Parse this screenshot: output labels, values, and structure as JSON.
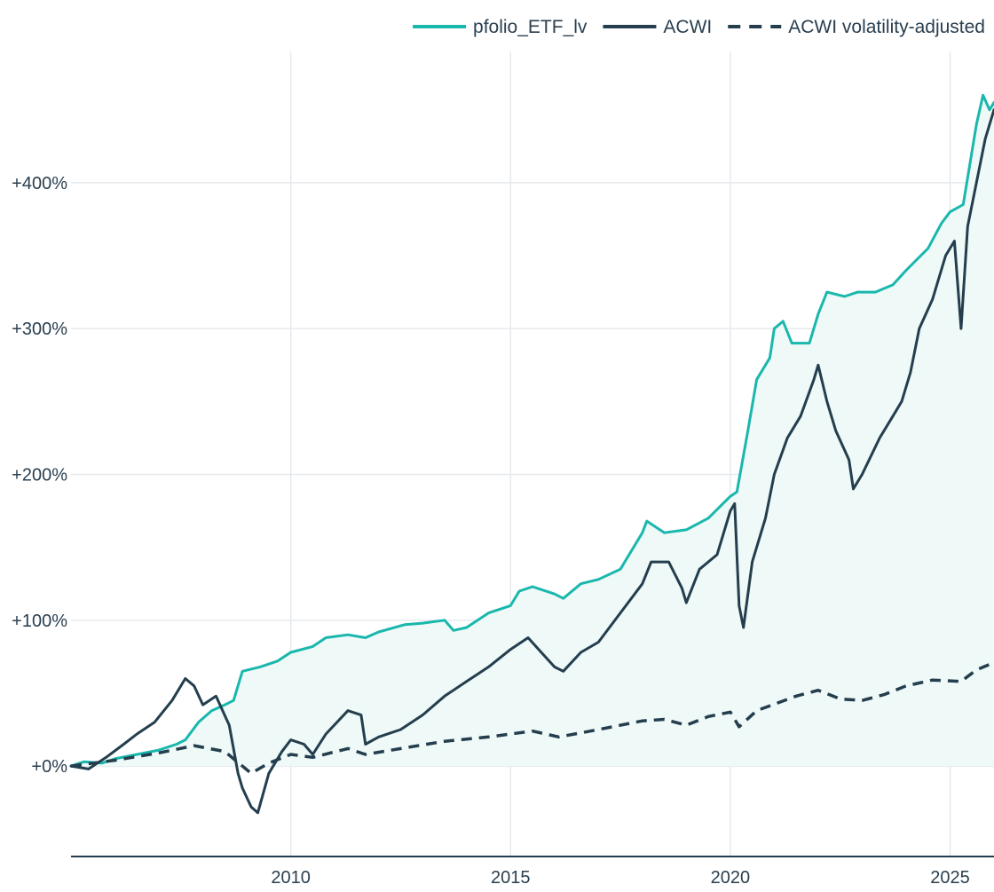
{
  "chart_data": {
    "type": "line",
    "title": "",
    "xlabel": "",
    "ylabel": "",
    "x_range": [
      2005.0,
      2026.0
    ],
    "y_range": [
      -62,
      490
    ],
    "x_ticks": [
      2010,
      2015,
      2020,
      2025
    ],
    "x_tick_labels": [
      "2010",
      "2015",
      "2020",
      "2025"
    ],
    "y_ticks": [
      0,
      100,
      200,
      300,
      400
    ],
    "y_tick_labels": [
      "+0%",
      "+100%",
      "+200%",
      "+300%",
      "+400%"
    ],
    "grid": true,
    "legend_position": "top-right",
    "legend": [
      {
        "label": "pfolio_ETF_lv",
        "style": "solid",
        "color": "#1ab7ad"
      },
      {
        "label": "ACWI",
        "style": "solid",
        "color": "#243e4d"
      },
      {
        "label": "ACWI volatility-adjusted",
        "style": "dashed",
        "color": "#243e4d"
      }
    ],
    "fill_color": "#eef9f8",
    "series": [
      {
        "name": "pfolio_ETF_lv",
        "color": "#1ab7ad",
        "dash": "solid",
        "fill_to_zero": true,
        "points": [
          [
            2005.0,
            0
          ],
          [
            2005.3,
            3
          ],
          [
            2005.7,
            2
          ],
          [
            2006.0,
            5
          ],
          [
            2006.5,
            8
          ],
          [
            2007.0,
            11
          ],
          [
            2007.4,
            15
          ],
          [
            2007.6,
            18
          ],
          [
            2007.9,
            30
          ],
          [
            2008.2,
            38
          ],
          [
            2008.5,
            42
          ],
          [
            2008.7,
            45
          ],
          [
            2008.9,
            65
          ],
          [
            2009.3,
            68
          ],
          [
            2009.7,
            72
          ],
          [
            2010.0,
            78
          ],
          [
            2010.5,
            82
          ],
          [
            2010.8,
            88
          ],
          [
            2011.3,
            90
          ],
          [
            2011.7,
            88
          ],
          [
            2012.0,
            92
          ],
          [
            2012.6,
            97
          ],
          [
            2013.0,
            98
          ],
          [
            2013.5,
            100
          ],
          [
            2013.7,
            93
          ],
          [
            2014.0,
            95
          ],
          [
            2014.5,
            105
          ],
          [
            2015.0,
            110
          ],
          [
            2015.2,
            120
          ],
          [
            2015.5,
            123
          ],
          [
            2016.0,
            118
          ],
          [
            2016.2,
            115
          ],
          [
            2016.6,
            125
          ],
          [
            2017.0,
            128
          ],
          [
            2017.5,
            135
          ],
          [
            2018.0,
            160
          ],
          [
            2018.1,
            168
          ],
          [
            2018.5,
            160
          ],
          [
            2019.0,
            162
          ],
          [
            2019.5,
            170
          ],
          [
            2020.0,
            185
          ],
          [
            2020.15,
            188
          ],
          [
            2020.4,
            230
          ],
          [
            2020.6,
            265
          ],
          [
            2020.9,
            280
          ],
          [
            2021.0,
            300
          ],
          [
            2021.2,
            305
          ],
          [
            2021.4,
            290
          ],
          [
            2021.8,
            290
          ],
          [
            2022.0,
            310
          ],
          [
            2022.2,
            325
          ],
          [
            2022.6,
            322
          ],
          [
            2022.9,
            325
          ],
          [
            2023.3,
            325
          ],
          [
            2023.7,
            330
          ],
          [
            2024.0,
            340
          ],
          [
            2024.5,
            355
          ],
          [
            2024.8,
            372
          ],
          [
            2025.0,
            380
          ],
          [
            2025.3,
            385
          ],
          [
            2025.6,
            440
          ],
          [
            2025.75,
            460
          ],
          [
            2025.9,
            450
          ],
          [
            2026.0,
            455
          ]
        ]
      },
      {
        "name": "ACWI",
        "color": "#243e4d",
        "dash": "solid",
        "fill_to_zero": false,
        "points": [
          [
            2005.0,
            0
          ],
          [
            2005.4,
            -2
          ],
          [
            2005.8,
            6
          ],
          [
            2006.2,
            15
          ],
          [
            2006.5,
            22
          ],
          [
            2006.9,
            30
          ],
          [
            2007.3,
            45
          ],
          [
            2007.6,
            60
          ],
          [
            2007.8,
            55
          ],
          [
            2008.0,
            42
          ],
          [
            2008.3,
            48
          ],
          [
            2008.6,
            28
          ],
          [
            2008.8,
            -5
          ],
          [
            2008.9,
            -15
          ],
          [
            2009.1,
            -28
          ],
          [
            2009.25,
            -32
          ],
          [
            2009.5,
            -5
          ],
          [
            2009.8,
            10
          ],
          [
            2010.0,
            18
          ],
          [
            2010.3,
            15
          ],
          [
            2010.5,
            8
          ],
          [
            2010.8,
            22
          ],
          [
            2011.3,
            38
          ],
          [
            2011.6,
            35
          ],
          [
            2011.7,
            15
          ],
          [
            2012.0,
            20
          ],
          [
            2012.5,
            25
          ],
          [
            2013.0,
            35
          ],
          [
            2013.5,
            48
          ],
          [
            2014.0,
            58
          ],
          [
            2014.5,
            68
          ],
          [
            2015.0,
            80
          ],
          [
            2015.4,
            88
          ],
          [
            2015.7,
            78
          ],
          [
            2016.0,
            68
          ],
          [
            2016.2,
            65
          ],
          [
            2016.6,
            78
          ],
          [
            2017.0,
            85
          ],
          [
            2017.5,
            105
          ],
          [
            2018.0,
            125
          ],
          [
            2018.2,
            140
          ],
          [
            2018.6,
            140
          ],
          [
            2018.9,
            122
          ],
          [
            2019.0,
            112
          ],
          [
            2019.3,
            135
          ],
          [
            2019.7,
            145
          ],
          [
            2020.0,
            175
          ],
          [
            2020.1,
            180
          ],
          [
            2020.2,
            110
          ],
          [
            2020.3,
            95
          ],
          [
            2020.5,
            140
          ],
          [
            2020.8,
            170
          ],
          [
            2021.0,
            200
          ],
          [
            2021.3,
            225
          ],
          [
            2021.6,
            240
          ],
          [
            2021.9,
            265
          ],
          [
            2022.0,
            275
          ],
          [
            2022.2,
            250
          ],
          [
            2022.4,
            230
          ],
          [
            2022.7,
            210
          ],
          [
            2022.8,
            190
          ],
          [
            2023.0,
            200
          ],
          [
            2023.4,
            225
          ],
          [
            2023.7,
            240
          ],
          [
            2023.9,
            250
          ],
          [
            2024.1,
            270
          ],
          [
            2024.3,
            300
          ],
          [
            2024.6,
            320
          ],
          [
            2024.9,
            350
          ],
          [
            2025.1,
            360
          ],
          [
            2025.25,
            300
          ],
          [
            2025.4,
            370
          ],
          [
            2025.6,
            400
          ],
          [
            2025.8,
            430
          ],
          [
            2026.0,
            450
          ]
        ]
      },
      {
        "name": "ACWI volatility-adjusted",
        "color": "#243e4d",
        "dash": "dashed",
        "fill_to_zero": false,
        "points": [
          [
            2005.0,
            0
          ],
          [
            2006.0,
            4
          ],
          [
            2007.0,
            9
          ],
          [
            2007.8,
            14
          ],
          [
            2008.5,
            10
          ],
          [
            2009.1,
            -5
          ],
          [
            2009.5,
            2
          ],
          [
            2010.0,
            8
          ],
          [
            2010.5,
            6
          ],
          [
            2011.3,
            12
          ],
          [
            2011.7,
            8
          ],
          [
            2012.5,
            12
          ],
          [
            2013.5,
            17
          ],
          [
            2014.5,
            20
          ],
          [
            2015.5,
            24
          ],
          [
            2016.1,
            20
          ],
          [
            2017.0,
            25
          ],
          [
            2018.0,
            31
          ],
          [
            2018.5,
            32
          ],
          [
            2019.0,
            28
          ],
          [
            2019.5,
            34
          ],
          [
            2020.0,
            37
          ],
          [
            2020.2,
            27
          ],
          [
            2020.6,
            38
          ],
          [
            2021.5,
            48
          ],
          [
            2022.0,
            52
          ],
          [
            2022.5,
            46
          ],
          [
            2023.0,
            45
          ],
          [
            2023.5,
            49
          ],
          [
            2024.0,
            55
          ],
          [
            2024.6,
            59
          ],
          [
            2025.25,
            58
          ],
          [
            2025.6,
            66
          ],
          [
            2026.0,
            71
          ]
        ]
      }
    ]
  }
}
